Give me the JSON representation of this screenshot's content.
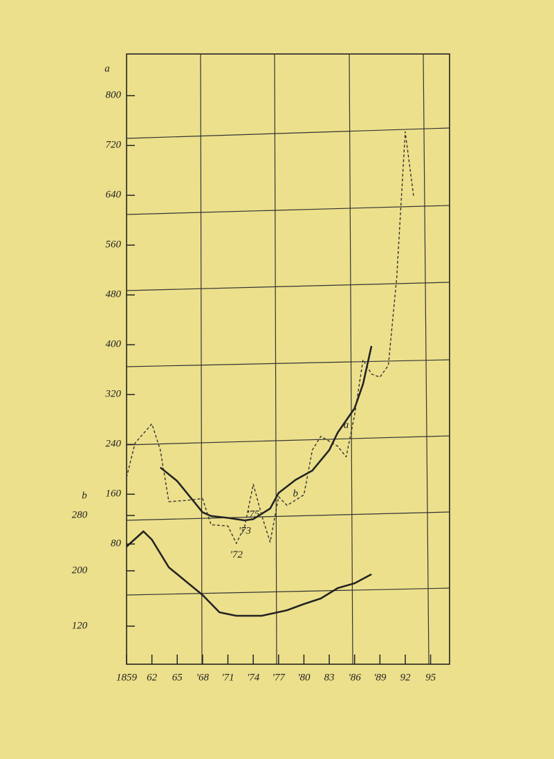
{
  "chart_data": {
    "type": "line",
    "x_label": "a",
    "y2_label": "b",
    "xlim": [
      1859,
      1897
    ],
    "xticks": [
      1859,
      {
        "value": 1862,
        "label": "62"
      },
      {
        "value": 1865,
        "label": "65"
      },
      {
        "value": 1868,
        "label": "'68"
      },
      {
        "value": 1871,
        "label": "'71"
      },
      {
        "value": 1874,
        "label": "'74"
      },
      {
        "value": 1877,
        "label": "'77"
      },
      {
        "value": 1880,
        "label": "'80"
      },
      {
        "value": 1883,
        "label": "83"
      },
      {
        "value": 1886,
        "label": "'86"
      },
      {
        "value": 1889,
        "label": "'89"
      },
      {
        "value": 1892,
        "label": "92"
      },
      {
        "value": 1895,
        "label": "95"
      }
    ],
    "ylim": [
      -113,
      867
    ],
    "yticks": [
      80,
      160,
      240,
      320,
      400,
      480,
      560,
      640,
      720,
      800
    ],
    "y2lim": [
      65,
      947
    ],
    "y2ticks": [
      120,
      200,
      280
    ],
    "annotations": [
      {
        "text": "a",
        "x": 1885,
        "y": 270
      },
      {
        "text": "b",
        "x": 1879,
        "y": 160
      },
      {
        "text": "'72",
        "x": 1872,
        "y": 62
      },
      {
        "text": "'73",
        "x": 1873,
        "y": 100
      },
      {
        "text": "'75",
        "x": 1874,
        "y": 127
      }
    ],
    "series": [
      {
        "name": "a",
        "color": "#222",
        "style": "solid",
        "x": [
          1863,
          1865,
          1868,
          1869,
          1871,
          1873,
          1874,
          1876,
          1877,
          1879,
          1881,
          1883,
          1884,
          1886,
          1887,
          1888
        ],
        "values": [
          203,
          181,
          131,
          125,
          122,
          118,
          120,
          137,
          162,
          183,
          198,
          231,
          259,
          298,
          337,
          398
        ]
      },
      {
        "name": "a",
        "color": "#333",
        "style": "dashed",
        "x": [
          1859,
          1860,
          1862,
          1863,
          1864,
          1866,
          1868,
          1869,
          1871,
          1872,
          1873,
          1874,
          1875,
          1876,
          1877,
          1878,
          1880,
          1881,
          1882,
          1884,
          1885,
          1886,
          1887,
          1888,
          1889,
          1890,
          1891,
          1892,
          1893
        ],
        "values": [
          187,
          242,
          273,
          231,
          148,
          150,
          153,
          111,
          109,
          81,
          109,
          176,
          126,
          83,
          156,
          142,
          159,
          231,
          253,
          237,
          220,
          287,
          376,
          353,
          348,
          367,
          509,
          742,
          637
        ]
      },
      {
        "name": "b",
        "color": "#222",
        "style": "solid",
        "axis": "y2",
        "x": [
          1859,
          1861,
          1862,
          1864,
          1866,
          1868,
          1870,
          1872,
          1875,
          1878,
          1880,
          1882,
          1884,
          1886,
          1888
        ],
        "values": [
          235,
          257,
          245,
          205,
          185,
          165,
          140,
          135,
          135,
          143,
          152,
          160,
          175,
          182,
          195
        ]
      }
    ]
  }
}
